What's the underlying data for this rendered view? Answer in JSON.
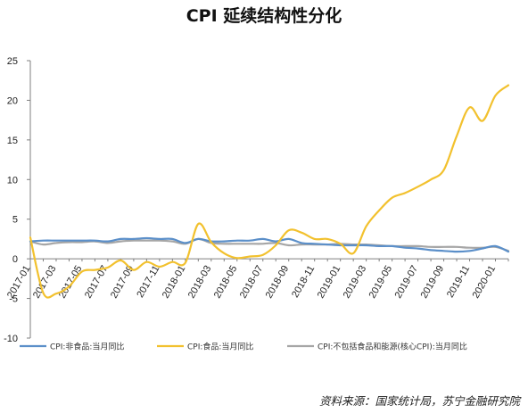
{
  "chart_data": {
    "type": "line",
    "title": "CPI 延续结构性分化",
    "source": "资料来源：国家统计局，苏宁金融研究院",
    "ylim": [
      -10,
      25
    ],
    "yticks": [
      25,
      20,
      15,
      10,
      5,
      0,
      -5,
      -10
    ],
    "grid": false,
    "legend_position": "bottom",
    "x": [
      "2017-01",
      "2017-02",
      "2017-03",
      "2017-04",
      "2017-05",
      "2017-06",
      "2017-07",
      "2017-08",
      "2017-09",
      "2017-10",
      "2017-11",
      "2017-12",
      "2018-01",
      "2018-02",
      "2018-03",
      "2018-04",
      "2018-05",
      "2018-06",
      "2018-07",
      "2018-08",
      "2018-09",
      "2018-10",
      "2018-11",
      "2018-12",
      "2019-01",
      "2019-02",
      "2019-03",
      "2019-04",
      "2019-05",
      "2019-06",
      "2019-07",
      "2019-08",
      "2019-09",
      "2019-10",
      "2019-11",
      "2019-12",
      "2020-01",
      "2020-02"
    ],
    "xtick_labels": [
      "2017-01",
      "2017-03",
      "2017-05",
      "2017-07",
      "2017-09",
      "2017-11",
      "2018-01",
      "2018-03",
      "2018-05",
      "2018-07",
      "2018-09",
      "2018-11",
      "2019-01",
      "2019-03",
      "2019-05",
      "2019-07",
      "2019-09",
      "2019-11",
      "2020-01"
    ],
    "series": [
      {
        "name": "CPI:非食品:当月同比",
        "color": "#5b8fc9",
        "values": [
          2.2,
          2.3,
          2.3,
          2.3,
          2.3,
          2.3,
          2.2,
          2.5,
          2.5,
          2.6,
          2.5,
          2.5,
          2.0,
          2.5,
          2.2,
          2.2,
          2.3,
          2.3,
          2.5,
          2.2,
          2.5,
          2.0,
          1.9,
          1.8,
          1.7,
          1.7,
          1.7,
          1.6,
          1.6,
          1.4,
          1.3,
          1.1,
          1.0,
          0.9,
          1.0,
          1.3,
          1.6,
          0.9
        ]
      },
      {
        "name": "CPI:食品:当月同比",
        "color": "#f2c12e",
        "values": [
          2.7,
          -4.3,
          -4.4,
          -3.5,
          -1.6,
          -1.4,
          -1.1,
          -0.2,
          -1.4,
          -0.4,
          -1.0,
          -0.4,
          -0.5,
          4.4,
          2.1,
          0.7,
          0.1,
          0.3,
          0.5,
          1.7,
          3.6,
          3.3,
          2.5,
          2.5,
          1.9,
          0.7,
          4.1,
          6.1,
          7.7,
          8.3,
          9.1,
          10.0,
          11.2,
          15.5,
          19.1,
          17.4,
          20.6,
          21.9
        ]
      },
      {
        "name": "CPI:不包括食品和能源(核心CPI):当月同比",
        "color": "#a6a6a6",
        "values": [
          2.2,
          1.8,
          2.0,
          2.1,
          2.1,
          2.2,
          2.0,
          2.2,
          2.3,
          2.3,
          2.3,
          2.2,
          1.9,
          2.5,
          2.0,
          1.9,
          1.9,
          1.9,
          1.9,
          2.0,
          1.7,
          1.8,
          1.8,
          1.8,
          1.9,
          1.8,
          1.8,
          1.7,
          1.6,
          1.6,
          1.6,
          1.5,
          1.5,
          1.5,
          1.4,
          1.4,
          1.5,
          1.0
        ]
      }
    ]
  }
}
